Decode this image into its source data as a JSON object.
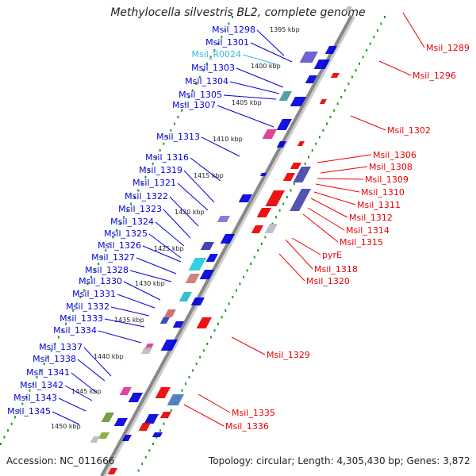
{
  "title": "Methylocella silvestris BL2, complete genome",
  "accession": "Accession: NC_011666",
  "topology": "Topology: circular; Length: 4,305,430 bp; Genes: 3,872",
  "colors": {
    "forward": "#0000dd",
    "reverse": "#ee0000",
    "rna": "#33bbdd",
    "backbone": "#888888",
    "tick": "#229922"
  },
  "kbp_ticks": [
    "1395 kbp",
    "1400 kbp",
    "1405 kbp",
    "1410 kbp",
    "1415 kbp",
    "1420 kbp",
    "1425 kbp",
    "1430 kbp",
    "1435 kbp",
    "1440 kbp",
    "1445 kbp",
    "1450 kbp"
  ],
  "left_labels": [
    "Msil_1298",
    "Msil_1301",
    "Msil_R0024",
    "Msil_1303",
    "Msil_1304",
    "Msil_1305",
    "Msil_1307",
    "Msil_1313",
    "Msil_1316",
    "Msil_1319",
    "Msil_1321",
    "Msil_1322",
    "Msil_1323",
    "Msil_1324",
    "Msil_1325",
    "Msil_1326",
    "Msil_1327",
    "Msil_1328",
    "Msil_1330",
    "Msil_1331",
    "Msil_1332",
    "Msil_1333",
    "Msil_1334",
    "Msil_1337",
    "Msil_1338",
    "Msil_1341",
    "Msil_1342",
    "Msil_1343",
    "Msil_1345"
  ],
  "right_labels": [
    "Msil_1289",
    "Msil_1296",
    "Msil_1302",
    "Msil_1306",
    "Msil_1308",
    "Msil_1309",
    "Msil_1310",
    "Msil_1311",
    "Msil_1312",
    "Msil_1314",
    "Msil_1315",
    "pyrE",
    "Msil_1318",
    "Msil_1320",
    "Msil_1329",
    "Msil_1335",
    "Msil_1336"
  ]
}
